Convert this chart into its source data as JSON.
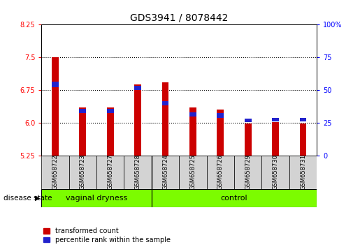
{
  "title": "GDS3941 / 8078442",
  "samples": [
    "GSM658722",
    "GSM658723",
    "GSM658727",
    "GSM658728",
    "GSM658724",
    "GSM658725",
    "GSM658726",
    "GSM658729",
    "GSM658730",
    "GSM658731"
  ],
  "red_values": [
    7.5,
    6.35,
    6.35,
    6.88,
    6.93,
    6.35,
    6.3,
    5.99,
    6.01,
    5.99
  ],
  "blue_tops": [
    6.82,
    6.22,
    6.22,
    6.75,
    6.4,
    6.14,
    6.12,
    6.02,
    6.04,
    6.04
  ],
  "blue_heights": [
    0.12,
    0.1,
    0.1,
    0.1,
    0.1,
    0.1,
    0.1,
    0.08,
    0.08,
    0.08
  ],
  "ylim_left": [
    5.25,
    8.25
  ],
  "ylim_right": [
    0,
    100
  ],
  "yticks_left": [
    5.25,
    6.0,
    6.75,
    7.5,
    8.25
  ],
  "yticks_right": [
    0,
    25,
    50,
    75,
    100
  ],
  "group_labels": [
    "vaginal dryness",
    "control"
  ],
  "n_group1": 4,
  "n_group2": 6,
  "bar_color_red": "#cc0000",
  "bar_color_blue": "#2222cc",
  "bar_width": 0.25,
  "baseline": 5.25,
  "legend_red": "transformed count",
  "legend_blue": "percentile rank within the sample",
  "disease_state_label": "disease state",
  "bg_plot": "white",
  "bg_sample": "#d3d3d3",
  "bg_group": "#7CFC00",
  "title_fontsize": 10,
  "tick_fontsize": 7,
  "sample_fontsize": 6,
  "group_fontsize": 8
}
